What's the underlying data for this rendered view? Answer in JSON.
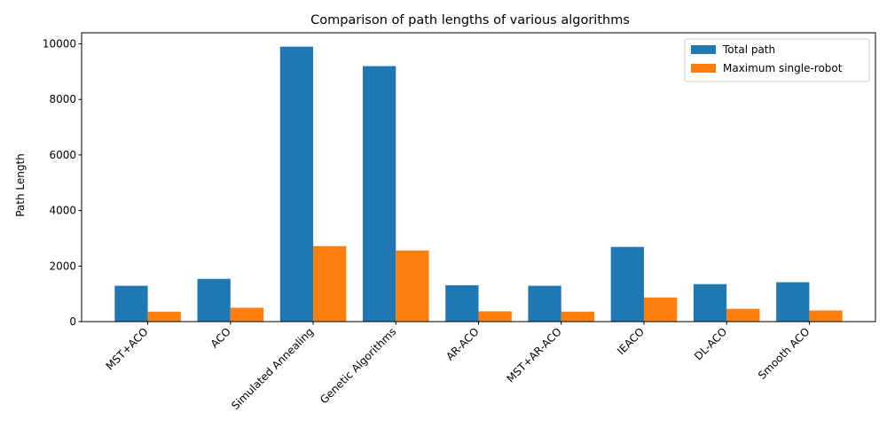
{
  "chart_data": {
    "type": "bar",
    "title": "Comparison of path lengths of various algorithms",
    "xlabel": "",
    "ylabel": "Path Length",
    "ylim": [
      0,
      10400
    ],
    "yticks": [
      0,
      2000,
      4000,
      6000,
      8000,
      10000
    ],
    "grid": false,
    "legend_position": "top-right",
    "categories": [
      "MST+ACO",
      "ACO",
      "Simulated Annealing",
      "Genetic Algorithms",
      "AR-ACO",
      "MST+AR-ACO",
      "IEACO",
      "DL-ACO",
      "Smooth ACO"
    ],
    "series": [
      {
        "name": "Total path",
        "color": "#1f77b4",
        "values": [
          1290,
          1540,
          9900,
          9200,
          1310,
          1290,
          2690,
          1350,
          1420
        ]
      },
      {
        "name": "Maximum single-robot",
        "color": "#ff7f0e",
        "values": [
          360,
          500,
          2720,
          2560,
          370,
          360,
          870,
          460,
          400
        ]
      }
    ]
  }
}
